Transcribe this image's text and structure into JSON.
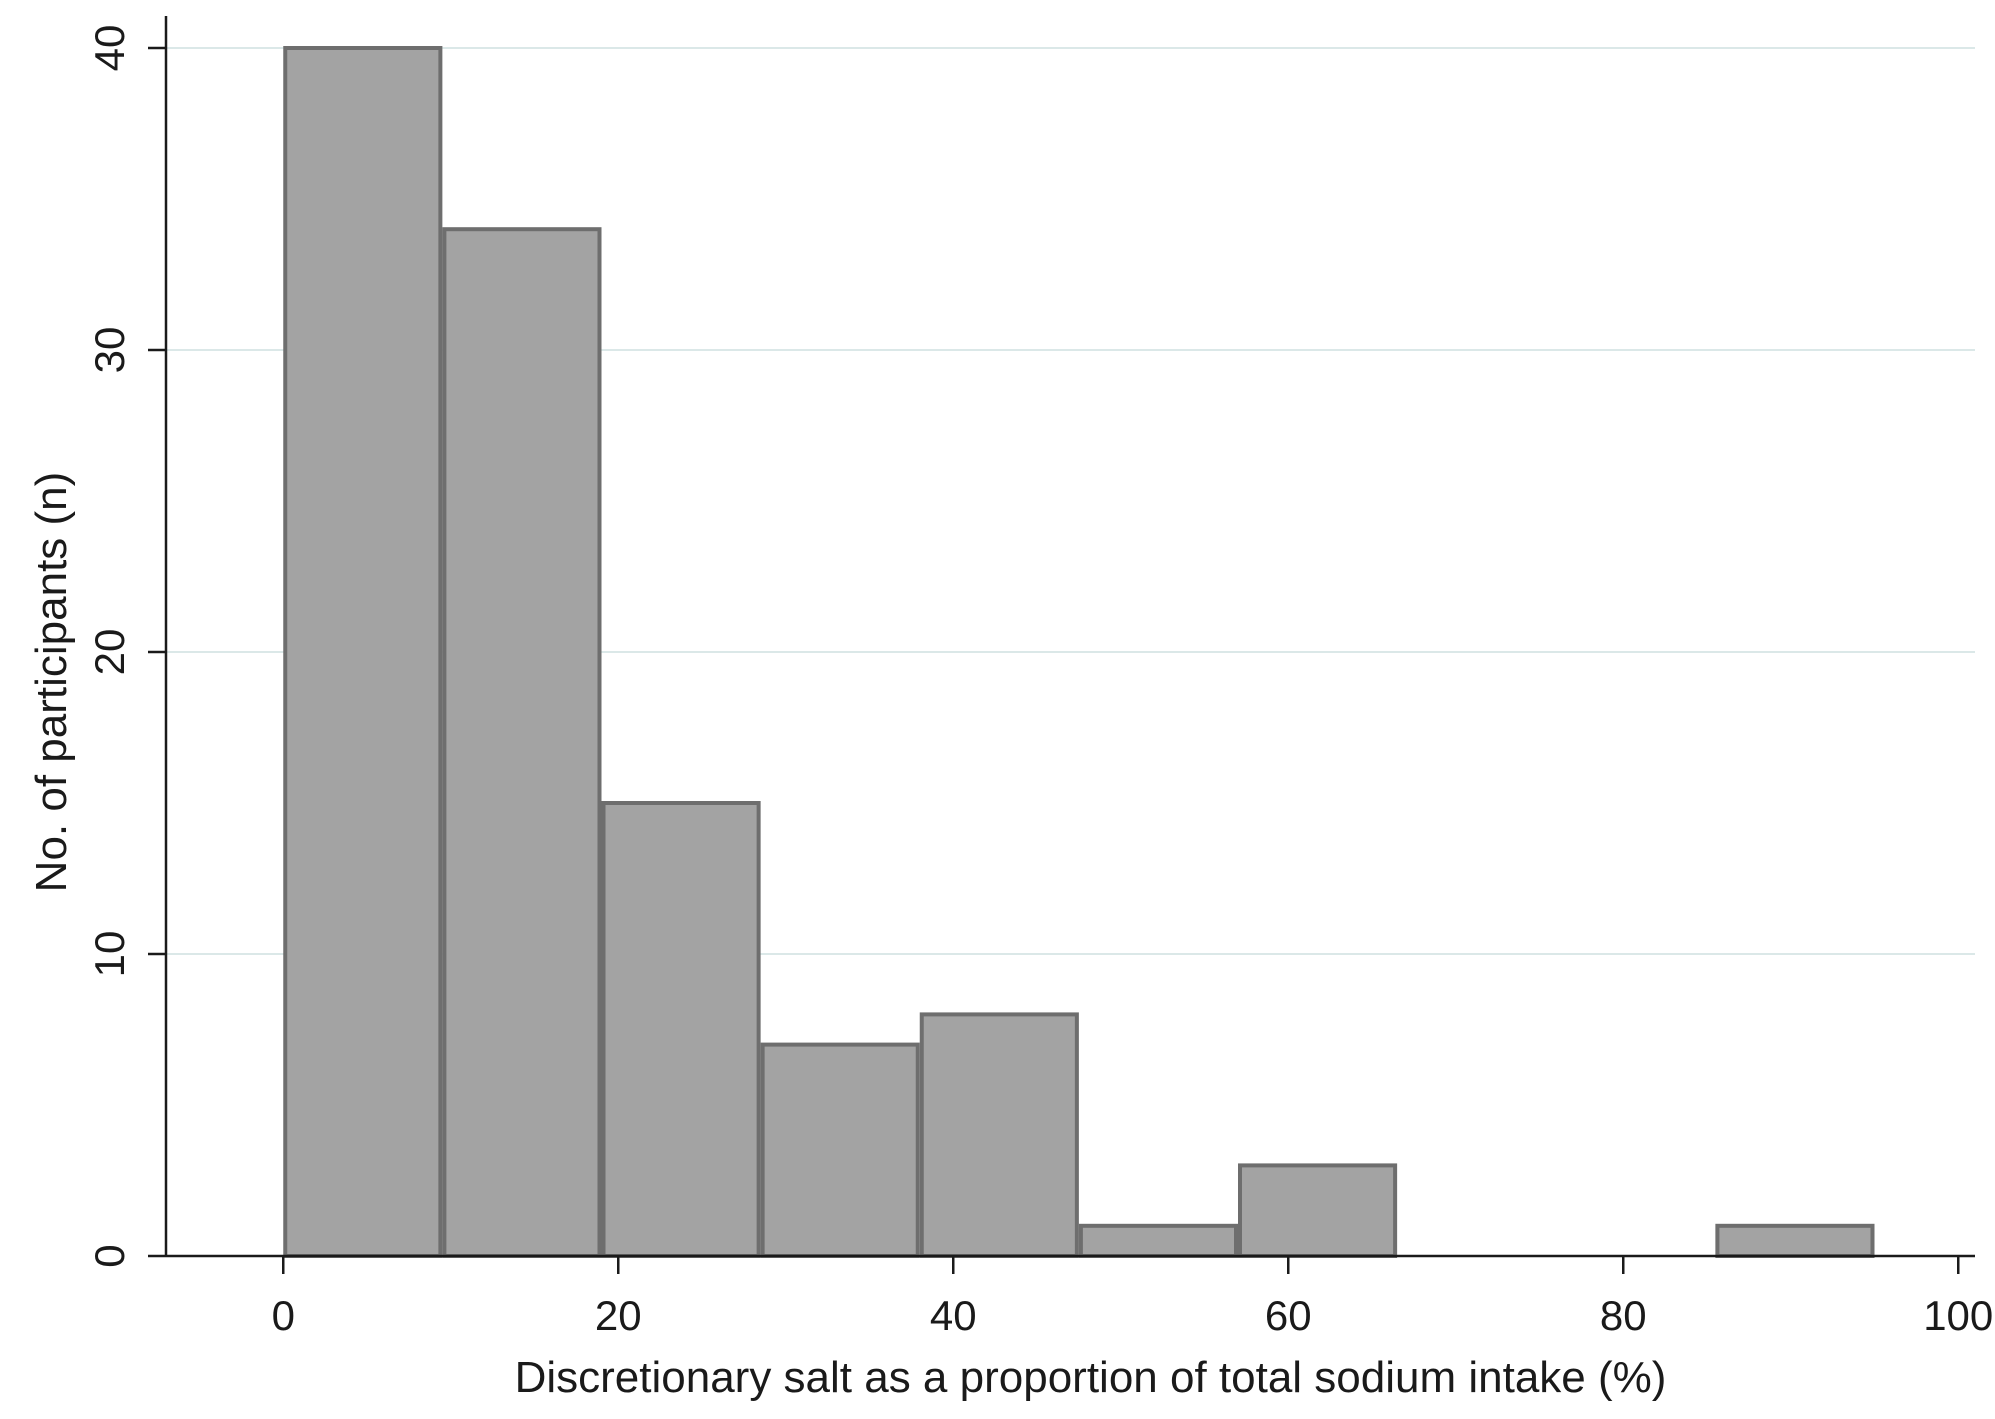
{
  "chart_data": {
    "type": "bar",
    "subtype": "histogram",
    "title": "",
    "xlabel": "Discretionary salt as a proportion of total sodium intake (%)",
    "ylabel": "No. of participants (n)",
    "xlim": [
      -7,
      101
    ],
    "ylim": [
      0,
      40
    ],
    "xticks": [
      0,
      20,
      40,
      60,
      80,
      100
    ],
    "yticks": [
      0,
      10,
      20,
      30,
      40
    ],
    "grid": "horizontal",
    "bin_edges": [
      0,
      9.5,
      19,
      28.5,
      38,
      47.5,
      57,
      66.5,
      76,
      85.5,
      95
    ],
    "values": [
      40,
      34,
      15,
      7,
      8,
      1,
      3,
      0,
      0,
      1
    ],
    "colors": {
      "bar_fill": "#a3a3a3",
      "bar_stroke": "#6e6e6e",
      "axis": "#1a1a1a",
      "grid": "#dbe8e8"
    }
  }
}
